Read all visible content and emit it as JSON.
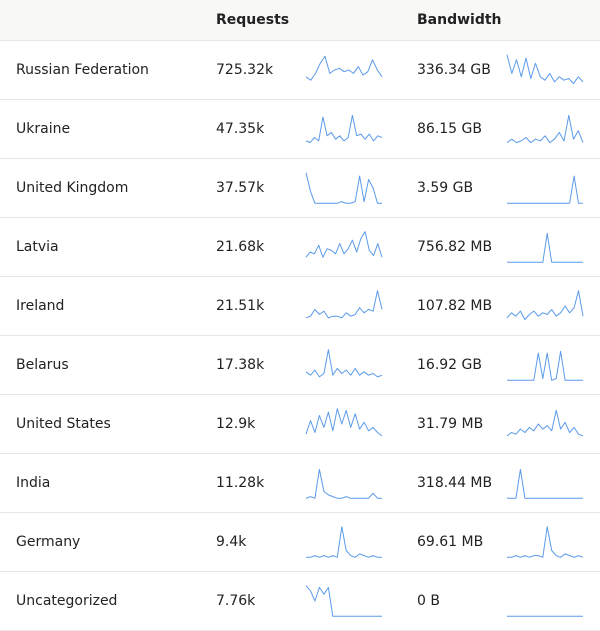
{
  "table": {
    "columns": {
      "requests": "Requests",
      "bandwidth": "Bandwidth"
    },
    "rows": [
      {
        "country": "Russian Federation",
        "requests": "725.32k",
        "bandwidth": "336.34 GB",
        "req_trend": [
          0.3,
          0.2,
          0.4,
          0.7,
          0.9,
          0.4,
          0.5,
          0.55,
          0.45,
          0.5,
          0.4,
          0.6,
          0.35,
          0.45,
          0.8,
          0.5,
          0.3
        ],
        "bw_trend": [
          0.95,
          0.4,
          0.8,
          0.3,
          0.85,
          0.25,
          0.7,
          0.3,
          0.2,
          0.4,
          0.15,
          0.3,
          0.2,
          0.25,
          0.1,
          0.3,
          0.15
        ]
      },
      {
        "country": "Ukraine",
        "requests": "47.35k",
        "bandwidth": "86.15 GB",
        "req_trend": [
          0.15,
          0.1,
          0.25,
          0.15,
          0.85,
          0.3,
          0.4,
          0.2,
          0.3,
          0.15,
          0.25,
          0.9,
          0.3,
          0.35,
          0.2,
          0.35,
          0.15,
          0.3,
          0.25
        ],
        "bw_trend": [
          0.1,
          0.2,
          0.1,
          0.15,
          0.25,
          0.1,
          0.2,
          0.15,
          0.3,
          0.1,
          0.2,
          0.4,
          0.15,
          0.9,
          0.2,
          0.45,
          0.1
        ]
      },
      {
        "country": "United Kingdom",
        "requests": "37.57k",
        "bandwidth": "3.59 GB",
        "req_trend": [
          0.95,
          0.4,
          0.05,
          0.05,
          0.05,
          0.05,
          0.05,
          0.05,
          0.1,
          0.05,
          0.05,
          0.1,
          0.85,
          0.1,
          0.75,
          0.5,
          0.05,
          0.05
        ],
        "bw_trend": [
          0.05,
          0.05,
          0.05,
          0.05,
          0.05,
          0.05,
          0.05,
          0.05,
          0.05,
          0.05,
          0.05,
          0.05,
          0.05,
          0.05,
          0.05,
          0.85,
          0.05,
          0.05
        ]
      },
      {
        "country": "Latvia",
        "requests": "21.68k",
        "bandwidth": "756.82 MB",
        "req_trend": [
          0.2,
          0.35,
          0.3,
          0.55,
          0.2,
          0.45,
          0.4,
          0.3,
          0.6,
          0.3,
          0.45,
          0.7,
          0.35,
          0.75,
          0.95,
          0.4,
          0.25,
          0.6,
          0.2
        ],
        "bw_trend": [
          0.05,
          0.05,
          0.05,
          0.05,
          0.05,
          0.05,
          0.05,
          0.05,
          0.05,
          0.9,
          0.05,
          0.05,
          0.05,
          0.05,
          0.05,
          0.05,
          0.05,
          0.05
        ]
      },
      {
        "country": "Ireland",
        "requests": "21.51k",
        "bandwidth": "107.82 MB",
        "req_trend": [
          0.15,
          0.2,
          0.4,
          0.25,
          0.35,
          0.15,
          0.2,
          0.2,
          0.15,
          0.3,
          0.2,
          0.25,
          0.45,
          0.3,
          0.4,
          0.35,
          0.95,
          0.4
        ],
        "bw_trend": [
          0.15,
          0.3,
          0.2,
          0.35,
          0.1,
          0.25,
          0.35,
          0.2,
          0.3,
          0.25,
          0.4,
          0.2,
          0.3,
          0.5,
          0.3,
          0.45,
          0.95,
          0.2
        ]
      },
      {
        "country": "Belarus",
        "requests": "17.38k",
        "bandwidth": "16.92 GB",
        "req_trend": [
          0.3,
          0.2,
          0.35,
          0.15,
          0.25,
          0.95,
          0.2,
          0.4,
          0.25,
          0.35,
          0.2,
          0.4,
          0.2,
          0.3,
          0.2,
          0.25,
          0.15,
          0.2
        ],
        "bw_trend": [
          0.05,
          0.05,
          0.05,
          0.05,
          0.05,
          0.05,
          0.05,
          0.85,
          0.1,
          0.85,
          0.05,
          0.1,
          0.9,
          0.05,
          0.05,
          0.05,
          0.05,
          0.05
        ]
      },
      {
        "country": "United States",
        "requests": "12.9k",
        "bandwidth": "31.79 MB",
        "req_trend": [
          0.2,
          0.6,
          0.25,
          0.75,
          0.4,
          0.85,
          0.3,
          0.95,
          0.5,
          0.9,
          0.4,
          0.8,
          0.35,
          0.55,
          0.3,
          0.4,
          0.25,
          0.15
        ],
        "bw_trend": [
          0.15,
          0.25,
          0.2,
          0.35,
          0.25,
          0.4,
          0.3,
          0.5,
          0.35,
          0.45,
          0.3,
          0.9,
          0.35,
          0.55,
          0.25,
          0.4,
          0.2,
          0.15
        ]
      },
      {
        "country": "India",
        "requests": "11.28k",
        "bandwidth": "318.44 MB",
        "req_trend": [
          0.05,
          0.1,
          0.05,
          0.9,
          0.25,
          0.15,
          0.1,
          0.05,
          0.05,
          0.1,
          0.05,
          0.05,
          0.05,
          0.05,
          0.05,
          0.2,
          0.05,
          0.05
        ],
        "bw_trend": [
          0.05,
          0.05,
          0.05,
          0.9,
          0.05,
          0.05,
          0.05,
          0.05,
          0.05,
          0.05,
          0.05,
          0.05,
          0.05,
          0.05,
          0.05,
          0.05,
          0.05,
          0.05
        ]
      },
      {
        "country": "Germany",
        "requests": "9.4k",
        "bandwidth": "69.61 MB",
        "req_trend": [
          0.05,
          0.05,
          0.1,
          0.05,
          0.1,
          0.05,
          0.1,
          0.05,
          0.95,
          0.25,
          0.1,
          0.05,
          0.15,
          0.1,
          0.05,
          0.1,
          0.05,
          0.05
        ],
        "bw_trend": [
          0.05,
          0.05,
          0.1,
          0.05,
          0.1,
          0.05,
          0.1,
          0.1,
          0.05,
          0.95,
          0.25,
          0.1,
          0.05,
          0.15,
          0.1,
          0.05,
          0.1,
          0.05
        ]
      },
      {
        "country": "Uncategorized",
        "requests": "7.76k",
        "bandwidth": "0 B",
        "req_trend": [
          0.95,
          0.8,
          0.5,
          0.9,
          0.7,
          0.9,
          0.05,
          0.05,
          0.05,
          0.05,
          0.05,
          0.05,
          0.05,
          0.05,
          0.05,
          0.05,
          0.05,
          0.05
        ],
        "bw_trend": [
          0.05,
          0.05,
          0.05,
          0.05,
          0.05,
          0.05,
          0.05,
          0.05,
          0.05,
          0.05,
          0.05,
          0.05,
          0.05,
          0.05,
          0.05,
          0.05,
          0.05,
          0.05
        ]
      }
    ]
  }
}
